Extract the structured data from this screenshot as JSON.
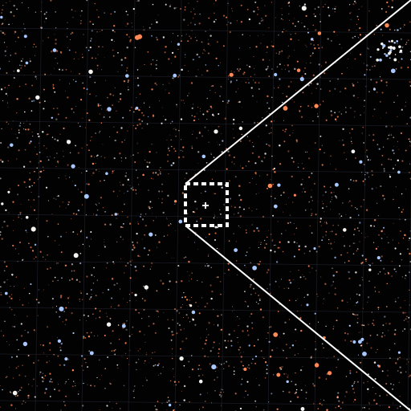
{
  "view": {
    "background_color": "#020203",
    "grid_color": "#2a2f3a",
    "star_colors": {
      "warm": "#ff8a55",
      "orange_dim": "#c76a45",
      "white": "#f4f2ee",
      "cool": "#a9c8ff",
      "faint": "#8c8c94"
    },
    "overlay_color": "#ffffff"
  },
  "field": {
    "star_count": 2600,
    "bright_star_count": 90
  },
  "reticle": {
    "marker_icon": "crosshair-plus-icon",
    "frame_icon": "dashed-square-frame-icon"
  },
  "zoom_lines": {
    "icon": "zoom-wedge-lines"
  }
}
